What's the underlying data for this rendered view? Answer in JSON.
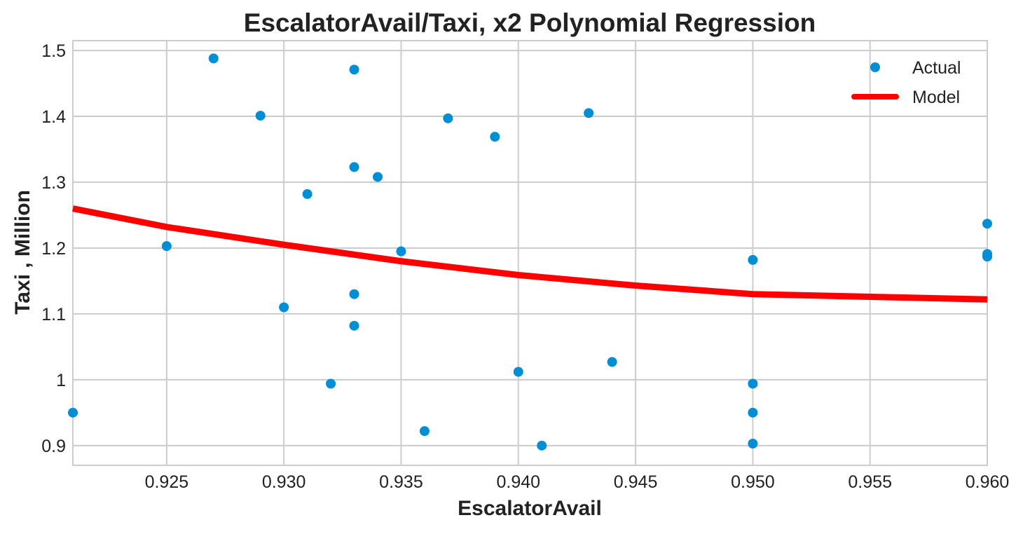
{
  "chart_data": {
    "type": "scatter",
    "title": "EscalatorAvail/Taxi, x2 Polynomial Regression",
    "xlabel": "EscalatorAvail",
    "ylabel": "Taxi , Million",
    "xlim": [
      0.921,
      0.96
    ],
    "ylim": [
      0.87,
      1.515
    ],
    "xticks": [
      0.925,
      0.93,
      0.935,
      0.94,
      0.945,
      0.95,
      0.955,
      0.96
    ],
    "xtick_labels": [
      "0.925",
      "0.930",
      "0.935",
      "0.940",
      "0.945",
      "0.950",
      "0.955",
      "0.960"
    ],
    "yticks": [
      0.9,
      1.0,
      1.1,
      1.2,
      1.3,
      1.4,
      1.5
    ],
    "ytick_labels": [
      "0.9",
      "1",
      "1.1",
      "1.2",
      "1.3",
      "1.4",
      "1.5"
    ],
    "grid": true,
    "legend_position": "top-right",
    "series": [
      {
        "name": "Actual",
        "kind": "scatter",
        "color": "#008fd5",
        "points": [
          [
            0.921,
            0.95
          ],
          [
            0.925,
            1.203
          ],
          [
            0.927,
            1.488
          ],
          [
            0.929,
            1.401
          ],
          [
            0.93,
            1.11
          ],
          [
            0.931,
            1.282
          ],
          [
            0.932,
            0.994
          ],
          [
            0.933,
            1.471
          ],
          [
            0.933,
            1.323
          ],
          [
            0.933,
            1.13
          ],
          [
            0.933,
            1.082
          ],
          [
            0.934,
            1.308
          ],
          [
            0.935,
            1.195
          ],
          [
            0.936,
            0.922
          ],
          [
            0.937,
            1.397
          ],
          [
            0.939,
            1.369
          ],
          [
            0.94,
            1.012
          ],
          [
            0.941,
            0.9
          ],
          [
            0.943,
            1.405
          ],
          [
            0.944,
            1.027
          ],
          [
            0.95,
            1.182
          ],
          [
            0.95,
            0.994
          ],
          [
            0.95,
            0.95
          ],
          [
            0.95,
            0.903
          ],
          [
            0.96,
            1.237
          ],
          [
            0.96,
            1.191
          ],
          [
            0.96,
            1.187
          ]
        ]
      },
      {
        "name": "Model",
        "kind": "line",
        "color": "#ff0000",
        "points": [
          [
            0.921,
            1.26
          ],
          [
            0.925,
            1.232
          ],
          [
            0.93,
            1.205
          ],
          [
            0.935,
            1.18
          ],
          [
            0.94,
            1.159
          ],
          [
            0.945,
            1.143
          ],
          [
            0.95,
            1.13
          ],
          [
            0.955,
            1.126
          ],
          [
            0.96,
            1.122
          ]
        ]
      }
    ]
  }
}
